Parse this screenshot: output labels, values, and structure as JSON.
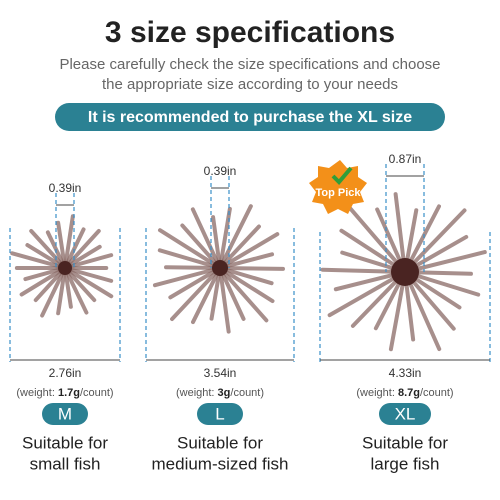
{
  "header": {
    "title": "3 size specifications",
    "subtitle": [
      "Please carefully check the size specifications and choose",
      "the appropriate size according to your needs"
    ],
    "banner": "It is recommended to purchase the XL size"
  },
  "badge": "Top Pick",
  "items": [
    {
      "head": "0.39in",
      "width": "2.76in",
      "weight": {
        "prefix": "(weight: ",
        "value": "1.7g",
        "suffix": "/count)"
      },
      "size": "M",
      "description": [
        "Suitable for",
        "small fish"
      ]
    },
    {
      "head": "0.39in",
      "width": "3.54in",
      "weight": {
        "prefix": "(weight: ",
        "value": "3g",
        "suffix": "/count)"
      },
      "size": "L",
      "description": [
        "Suitable for",
        "medium-sized fish"
      ]
    },
    {
      "head": "0.87in",
      "width": "4.33in",
      "weight": {
        "prefix": "(weight: ",
        "value": "8.7g",
        "suffix": "/count)"
      },
      "size": "XL",
      "description": [
        "Suitable for",
        "large fish"
      ]
    }
  ]
}
